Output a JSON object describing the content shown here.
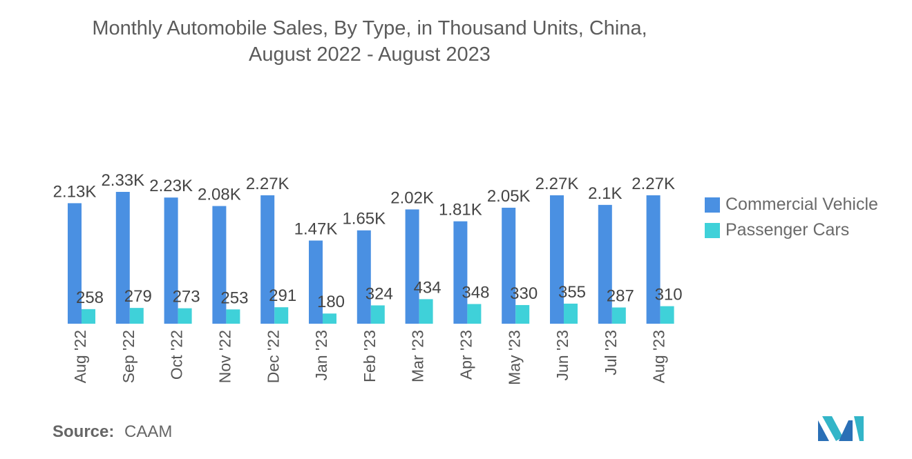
{
  "title": {
    "line1": "Monthly Automobile Sales, By Type, in Thousand Units, China,",
    "line2": "August 2022 - August 2023"
  },
  "legend": {
    "items": [
      {
        "label": "Commercial Vehicle",
        "color": "#4a90e2"
      },
      {
        "label": "Passenger Cars",
        "color": "#3fd1d9"
      }
    ]
  },
  "source": {
    "label": "Source:",
    "value": "CAAM"
  },
  "chart_data": {
    "type": "bar",
    "categories": [
      "Aug '22",
      "Sep '22",
      "Oct '22",
      "Nov '22",
      "Dec '22",
      "Jan '23",
      "Feb '23",
      "Mar '23",
      "Apr '23",
      "May '23",
      "Jun '23",
      "Jul '23",
      "Aug '23"
    ],
    "series": [
      {
        "name": "Commercial Vehicle",
        "color": "#4a90e2",
        "values": [
          2130,
          2330,
          2230,
          2080,
          2270,
          1470,
          1650,
          2020,
          1810,
          2050,
          2270,
          2100,
          2270
        ],
        "labels": [
          "2.13K",
          "2.33K",
          "2.23K",
          "2.08K",
          "2.27K",
          "1.47K",
          "1.65K",
          "2.02K",
          "1.81K",
          "2.05K",
          "2.27K",
          "2.1K",
          "2.27K"
        ]
      },
      {
        "name": "Passenger Cars",
        "color": "#3fd1d9",
        "values": [
          258,
          279,
          273,
          253,
          291,
          180,
          324,
          434,
          348,
          330,
          355,
          287,
          310
        ],
        "labels": [
          "258",
          "279",
          "273",
          "253",
          "291",
          "180",
          "324",
          "434",
          "348",
          "330",
          "355",
          "287",
          "310"
        ]
      }
    ],
    "ylim": [
      0,
      2330
    ],
    "grid": false,
    "legend_position": "right"
  }
}
